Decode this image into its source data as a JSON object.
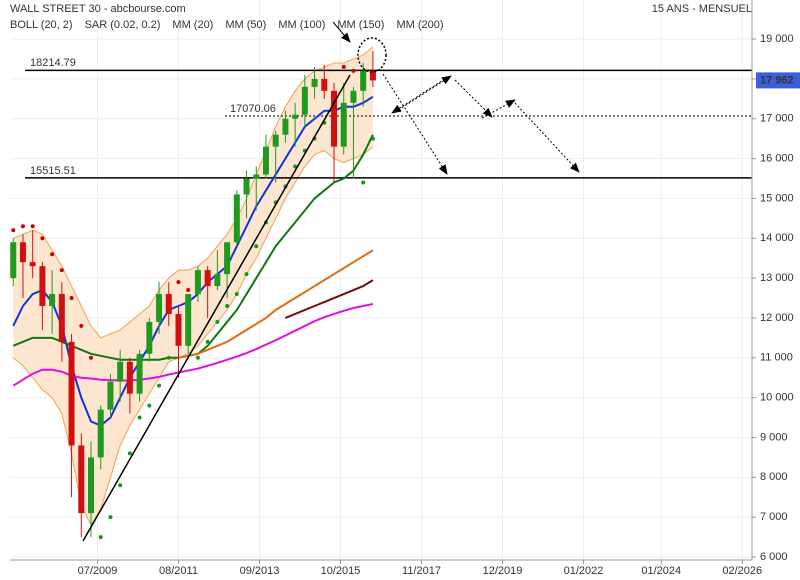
{
  "chart_data": {
    "type": "candlestick",
    "title": "WALL STREET 30 - abcbourse.com",
    "subtitle": "15 ANS - MENSUEL",
    "xlim": [
      "2007-04",
      "2026-05"
    ],
    "ylim": [
      5925,
      19980
    ],
    "grid": true,
    "xticks": [
      {
        "value": "2009-07",
        "label": "07/2009"
      },
      {
        "value": "2011-08",
        "label": "08/2011"
      },
      {
        "value": "2013-09",
        "label": "09/2013"
      },
      {
        "value": "2015-10",
        "label": "10/2015"
      },
      {
        "value": "2017-11",
        "label": "11/2017"
      },
      {
        "value": "2019-12",
        "label": "12/2019"
      },
      {
        "value": "2022-01",
        "label": "01/2022"
      },
      {
        "value": "2024-01",
        "label": "01/2024"
      },
      {
        "value": "2026-02",
        "label": "02/2026"
      }
    ],
    "yticks": [
      {
        "value": 6000,
        "label": "6 000"
      },
      {
        "value": 7000,
        "label": "7 000"
      },
      {
        "value": 8000,
        "label": "8 000"
      },
      {
        "value": 9000,
        "label": "9 000"
      },
      {
        "value": 10000,
        "label": "10 000"
      },
      {
        "value": 11000,
        "label": "11 000"
      },
      {
        "value": 12000,
        "label": "12 000"
      },
      {
        "value": 13000,
        "label": "13 000"
      },
      {
        "value": 14000,
        "label": "14 000"
      },
      {
        "value": 15000,
        "label": "15 000"
      },
      {
        "value": 16000,
        "label": "16 000"
      },
      {
        "value": 17000,
        "label": "17 000"
      },
      {
        "value": 18000,
        "label": "18 000"
      },
      {
        "value": 19000,
        "label": "19 000"
      }
    ],
    "x": [
      "2007-05",
      "2007-08",
      "2007-11",
      "2008-02",
      "2008-05",
      "2008-08",
      "2008-11",
      "2009-02",
      "2009-05",
      "2009-08",
      "2009-11",
      "2010-02",
      "2010-05",
      "2010-08",
      "2010-11",
      "2011-02",
      "2011-05",
      "2011-08",
      "2011-11",
      "2012-02",
      "2012-05",
      "2012-08",
      "2012-11",
      "2013-02",
      "2013-05",
      "2013-08",
      "2013-11",
      "2014-02",
      "2014-05",
      "2014-08",
      "2014-11",
      "2015-02",
      "2015-05",
      "2015-08",
      "2015-11",
      "2016-02",
      "2016-05",
      "2016-08"
    ],
    "ohlc": {
      "up_color": "#1f9a1f",
      "down_color": "#d01010",
      "open": [
        13000,
        13900,
        13400,
        13300,
        12300,
        12600,
        11400,
        8800,
        7100,
        8500,
        9700,
        10400,
        10900,
        10100,
        11100,
        11900,
        12600,
        12100,
        11300,
        12600,
        13200,
        12800,
        13100,
        13900,
        15100,
        15500,
        15600,
        16300,
        16600,
        17000,
        17100,
        17800,
        18000,
        17700,
        16300,
        17400,
        17700,
        18200
      ],
      "high": [
        14000,
        14100,
        14200,
        13400,
        13200,
        12900,
        11600,
        9100,
        8900,
        9800,
        10600,
        11200,
        11000,
        11200,
        12000,
        12900,
        12900,
        12300,
        12600,
        13300,
        13300,
        13700,
        13600,
        15200,
        15700,
        15800,
        16600,
        16700,
        17200,
        17400,
        18100,
        18300,
        18350,
        17900,
        17900,
        17800,
        18400,
        18700
      ],
      "low": [
        12800,
        12500,
        13000,
        11700,
        11600,
        10900,
        7500,
        6500,
        6500,
        8200,
        9500,
        9900,
        9600,
        9900,
        10900,
        11600,
        11800,
        10500,
        11100,
        12400,
        12000,
        12700,
        12500,
        13800,
        14500,
        14700,
        15500,
        15400,
        16400,
        16300,
        16800,
        17500,
        17500,
        15400,
        16100,
        15500,
        17300,
        17800
      ],
      "close": [
        13900,
        13400,
        13300,
        12300,
        12600,
        11400,
        8800,
        7100,
        8500,
        9700,
        10400,
        10900,
        10100,
        11100,
        11900,
        12600,
        12100,
        11300,
        12600,
        13200,
        12800,
        13100,
        13900,
        15100,
        15500,
        15600,
        16300,
        16600,
        17000,
        17100,
        17800,
        18000,
        17700,
        16300,
        17400,
        17700,
        18200,
        17962
      ]
    },
    "last_price": {
      "value": 17962,
      "label": "17 962",
      "color": "#3a5fd8"
    },
    "boll": {
      "name": "BOLL (20, 2)",
      "color": "#f0a050",
      "fill": "#fde6cf",
      "upper": [
        14000,
        14100,
        14200,
        14100,
        13700,
        13300,
        12800,
        12300,
        11800,
        11500,
        11600,
        11700,
        11900,
        12100,
        12300,
        12700,
        13000,
        13200,
        13200,
        13300,
        13500,
        13800,
        14100,
        14500,
        15000,
        15600,
        16200,
        16800,
        17300,
        17700,
        18000,
        18200,
        18300,
        18400,
        18400,
        18500,
        18600,
        18800
      ],
      "lower": [
        11000,
        10800,
        10500,
        10200,
        10000,
        9600,
        8600,
        7300,
        6800,
        7200,
        8000,
        8800,
        9300,
        9700,
        10100,
        10500,
        10900,
        11000,
        11100,
        11300,
        11600,
        11900,
        12200,
        12600,
        13100,
        13500,
        14000,
        14500,
        15000,
        15400,
        15800,
        16100,
        16200,
        16000,
        15900,
        16000,
        16100,
        16300
      ]
    },
    "sar": {
      "name": "SAR (0.02, 0.2)",
      "color_above": "#cc0000",
      "color_below": "#119911",
      "values": [
        14200,
        14300,
        14300,
        14000,
        13600,
        13200,
        12500,
        11800,
        11000,
        6500,
        7000,
        7800,
        8600,
        9500,
        9800,
        10300,
        11000,
        12900,
        12700,
        11000,
        11400,
        11900,
        12300,
        12600,
        13100,
        13800,
        14400,
        14900,
        15300,
        15800,
        16200,
        16500,
        16900,
        17300,
        18300,
        18200,
        15400,
        16500
      ]
    },
    "series": [
      {
        "name": "MM (20)",
        "color": "#1133dd",
        "values": [
          11800,
          12300,
          12600,
          12700,
          12400,
          11800,
          10800,
          10000,
          9400,
          9300,
          9500,
          10000,
          10500,
          10900,
          11300,
          11800,
          12200,
          12300,
          12400,
          12600,
          12900,
          13100,
          13300,
          13800,
          14300,
          14800,
          15200,
          15600,
          16000,
          16400,
          16800,
          17000,
          17200,
          17200,
          17300,
          17300,
          17400,
          17550
        ]
      },
      {
        "name": "MM (50)",
        "color": "#117711",
        "values": [
          11300,
          11400,
          11500,
          11500,
          11500,
          11400,
          11300,
          11200,
          11100,
          11050,
          11000,
          10950,
          10950,
          10950,
          10950,
          10950,
          11000,
          11000,
          11050,
          11100,
          11300,
          11600,
          11900,
          12200,
          12600,
          13000,
          13400,
          13800,
          14100,
          14400,
          14700,
          15000,
          15200,
          15400,
          15500,
          15700,
          16100,
          16600
        ]
      },
      {
        "name": "MM (100)",
        "color": "#e66a10",
        "values": [
          null,
          null,
          null,
          null,
          null,
          null,
          null,
          null,
          null,
          null,
          null,
          null,
          null,
          null,
          null,
          null,
          null,
          11000,
          11050,
          11100,
          11200,
          11300,
          11400,
          11550,
          11700,
          11850,
          12000,
          12200,
          12350,
          12500,
          12650,
          12800,
          12950,
          13100,
          13250,
          13400,
          13550,
          13700
        ]
      },
      {
        "name": "MM (150)",
        "color": "#7a0a0a",
        "values": [
          null,
          null,
          null,
          null,
          null,
          null,
          null,
          null,
          null,
          null,
          null,
          null,
          null,
          null,
          null,
          null,
          null,
          null,
          null,
          null,
          null,
          null,
          null,
          null,
          null,
          null,
          null,
          null,
          12000,
          12100,
          12200,
          12300,
          12400,
          12500,
          12600,
          12700,
          12800,
          12950
        ]
      },
      {
        "name": "MM (200)",
        "color": "#e010e0",
        "values": [
          10300,
          10450,
          10600,
          10700,
          10700,
          10650,
          10550,
          10500,
          10480,
          10450,
          10440,
          10430,
          10430,
          10450,
          10480,
          10520,
          10580,
          10630,
          10680,
          10730,
          10800,
          10870,
          10950,
          11030,
          11120,
          11220,
          11330,
          11440,
          11560,
          11680,
          11800,
          11920,
          12020,
          12100,
          12180,
          12250,
          12300,
          12350
        ]
      }
    ],
    "levels": [
      {
        "value": 18214.79,
        "style": "solid"
      },
      {
        "value": 17070.06,
        "style": "dotted"
      },
      {
        "value": 15515.51,
        "style": "solid"
      }
    ]
  }
}
